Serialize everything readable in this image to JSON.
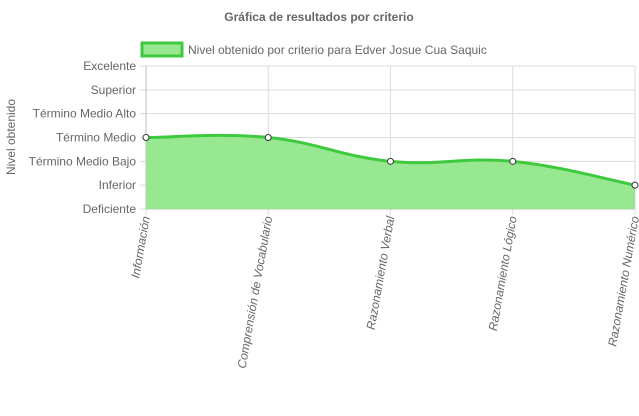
{
  "chart_data": {
    "type": "area",
    "title": "Gráfica de resultados por criterio",
    "ylabel": "Nivel obtenido",
    "xlabel": "",
    "categories": [
      "Información",
      "Comprensión de Vocabulario",
      "Razonamiento Verbal",
      "Razonamiento Lógico",
      "Razonamiento Numérico"
    ],
    "y_levels": [
      "Deficiente",
      "Inferior",
      "Término Medio Bajo",
      "Término Medio",
      "Término Medio Alto",
      "Superior",
      "Excelente"
    ],
    "ylim": [
      0,
      6
    ],
    "series": [
      {
        "name": "Nivel obtenido por criterio para Edver Josue Cua Saquic",
        "values": [
          3,
          3,
          2,
          2,
          1
        ],
        "value_labels": [
          "Término Medio",
          "Término Medio",
          "Término Medio Bajo",
          "Término Medio Bajo",
          "Inferior"
        ]
      }
    ],
    "legend_position": "top",
    "grid": true,
    "colors": {
      "line": "#3fc93f",
      "fill": "#98e891",
      "grid": "#dcdcdc",
      "axis": "#bdbdbd",
      "text": "#666666",
      "point_fill": "#ffffff",
      "point_stroke": "#333333"
    }
  }
}
